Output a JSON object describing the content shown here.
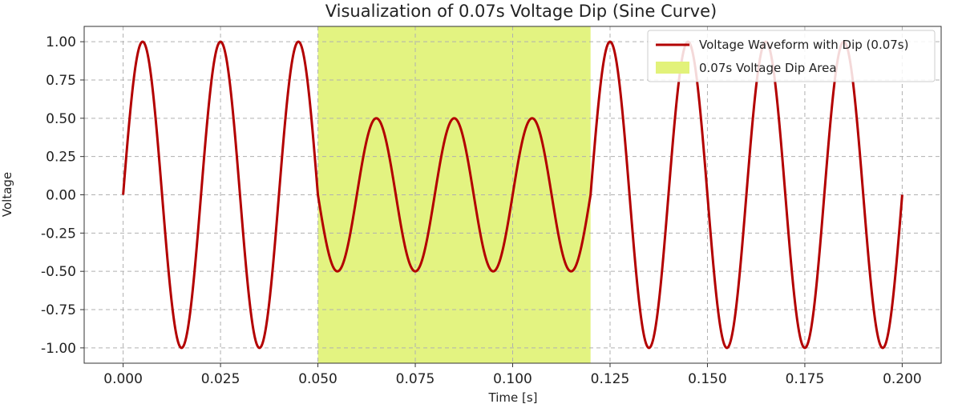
{
  "chart_data": {
    "type": "line",
    "title": "Visualization of 0.07s Voltage Dip (Sine Curve)",
    "xlabel": "Time [s]",
    "ylabel": "Voltage",
    "xlim": [
      -0.01,
      0.21
    ],
    "ylim": [
      -1.1,
      1.1
    ],
    "x_ticks": [
      0.0,
      0.025,
      0.05,
      0.075,
      0.1,
      0.125,
      0.15,
      0.175,
      0.2
    ],
    "x_tick_labels": [
      "0.000",
      "0.025",
      "0.050",
      "0.075",
      "0.100",
      "0.125",
      "0.150",
      "0.175",
      "0.200"
    ],
    "y_ticks": [
      1.0,
      0.75,
      0.5,
      0.25,
      0.0,
      -0.25,
      -0.5,
      -0.75,
      -1.0
    ],
    "y_tick_labels": [
      "1.00",
      "0.75",
      "0.50",
      "0.25",
      "0.00",
      "-0.25",
      "-0.50",
      "-0.75",
      "-1.00"
    ],
    "grid": true,
    "legend_position": "top-right",
    "series": [
      {
        "name": "Voltage Waveform with Dip (0.07s)",
        "color": "#b30000",
        "frequency_hz": 50,
        "nominal_amplitude": 1.0,
        "dip_amplitude": 0.5,
        "x_start": 0.0,
        "x_end": 0.2
      }
    ],
    "shaded_region": {
      "name": "0.07s Voltage Dip Area",
      "x_start": 0.05,
      "x_end": 0.12,
      "color": "#e2f27a"
    }
  }
}
